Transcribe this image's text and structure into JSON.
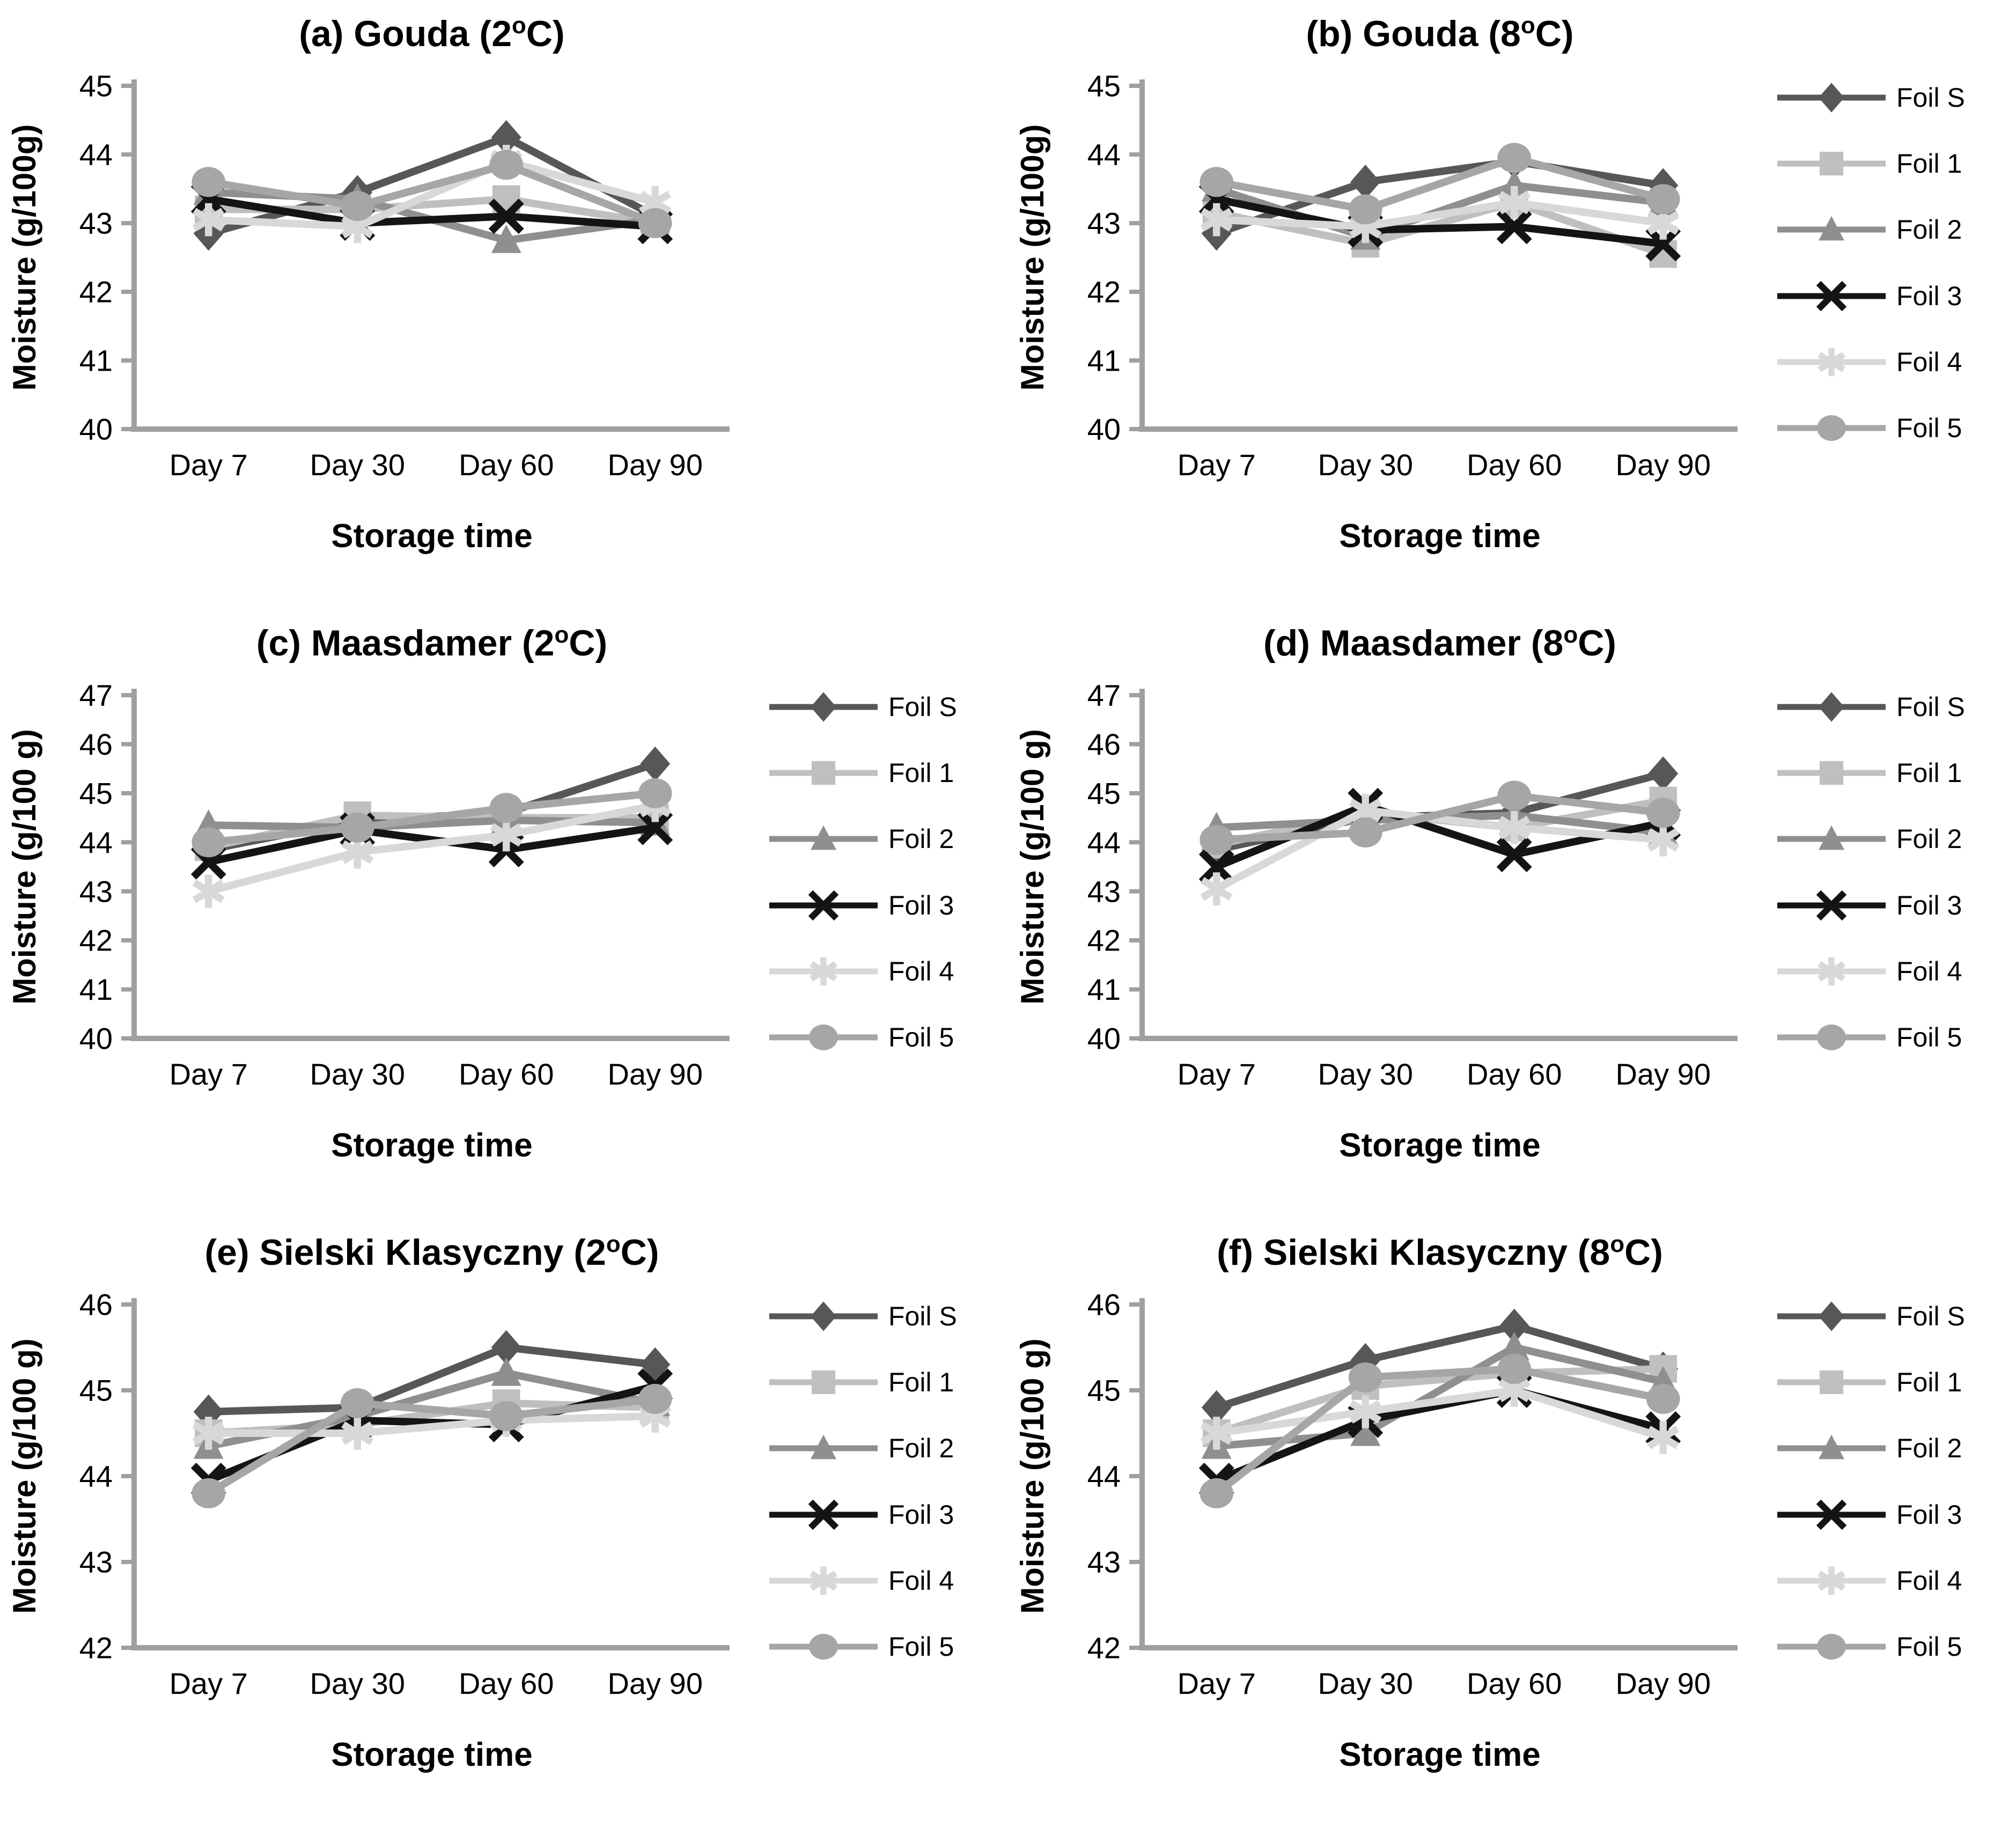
{
  "figure_name": "Cheese moisture during storage",
  "chart_data": [
    {
      "type": "line",
      "panel": "a",
      "title_prefix": "(a) Gouda (2",
      "title_sup": "o",
      "title_suffix": "C)",
      "ylabel": "Moisture (g/100g)",
      "xlabel": "Storage time",
      "ylim": [
        40,
        45
      ],
      "yticks": [
        45,
        44,
        43,
        42,
        41,
        40
      ],
      "categories": [
        "Day 7",
        "Day 30",
        "Day 60",
        "Day 90"
      ],
      "grid": false,
      "legend": false,
      "legend_position": "none",
      "series": [
        {
          "name": "Foil S",
          "marker": "diamond",
          "color": "#575757",
          "values": [
            42.85,
            43.45,
            44.25,
            43.1
          ]
        },
        {
          "name": "Foil 1",
          "marker": "square",
          "color": "#bfbfbf",
          "values": [
            43.2,
            43.2,
            43.35,
            43.0
          ]
        },
        {
          "name": "Foil 2",
          "marker": "triangle",
          "color": "#8f8f8f",
          "values": [
            43.45,
            43.35,
            42.75,
            43.05
          ]
        },
        {
          "name": "Foil 3",
          "marker": "x",
          "color": "#141414",
          "values": [
            43.35,
            43.0,
            43.1,
            42.95
          ]
        },
        {
          "name": "Foil 4",
          "marker": "asterisk",
          "color": "#d8d8d8",
          "values": [
            43.05,
            42.95,
            43.9,
            43.3
          ]
        },
        {
          "name": "Foil 5",
          "marker": "circle",
          "color": "#a6a6a6",
          "values": [
            43.6,
            43.25,
            43.85,
            43.0
          ]
        }
      ]
    },
    {
      "type": "line",
      "panel": "b",
      "title_prefix": "(b) Gouda (8",
      "title_sup": "o",
      "title_suffix": "C)",
      "ylabel": "Moisture (g/100g)",
      "xlabel": "Storage time",
      "ylim": [
        40,
        45
      ],
      "yticks": [
        45,
        44,
        43,
        42,
        41,
        40
      ],
      "categories": [
        "Day 7",
        "Day 30",
        "Day 60",
        "Day 90"
      ],
      "grid": false,
      "legend": true,
      "legend_position": "right",
      "series": [
        {
          "name": "Foil S",
          "marker": "diamond",
          "color": "#575757",
          "values": [
            42.85,
            43.6,
            43.9,
            43.55
          ]
        },
        {
          "name": "Foil 1",
          "marker": "square",
          "color": "#bfbfbf",
          "values": [
            43.15,
            42.7,
            43.3,
            42.55
          ]
        },
        {
          "name": "Foil 2",
          "marker": "triangle",
          "color": "#8f8f8f",
          "values": [
            43.5,
            42.8,
            43.55,
            43.3
          ]
        },
        {
          "name": "Foil 3",
          "marker": "x",
          "color": "#141414",
          "values": [
            43.35,
            42.9,
            42.95,
            42.7
          ]
        },
        {
          "name": "Foil 4",
          "marker": "asterisk",
          "color": "#d8d8d8",
          "values": [
            43.05,
            42.95,
            43.3,
            43.0
          ]
        },
        {
          "name": "Foil 5",
          "marker": "circle",
          "color": "#a6a6a6",
          "values": [
            43.6,
            43.2,
            43.95,
            43.35
          ]
        }
      ]
    },
    {
      "type": "line",
      "panel": "c",
      "title_prefix": "(c) Maasdamer (2",
      "title_sup": "o",
      "title_suffix": "C)",
      "ylabel": "Moisture (g/100 g)",
      "xlabel": "Storage time",
      "ylim": [
        40,
        47
      ],
      "yticks": [
        47,
        46,
        45,
        44,
        43,
        42,
        41,
        40
      ],
      "categories": [
        "Day 7",
        "Day 30",
        "Day 60",
        "Day 90"
      ],
      "grid": false,
      "legend": true,
      "legend_position": "right",
      "series": [
        {
          "name": "Foil S",
          "marker": "diamond",
          "color": "#575757",
          "values": [
            43.85,
            44.45,
            44.6,
            45.6
          ]
        },
        {
          "name": "Foil 1",
          "marker": "square",
          "color": "#bfbfbf",
          "values": [
            43.9,
            44.55,
            44.5,
            44.5
          ]
        },
        {
          "name": "Foil 2",
          "marker": "triangle",
          "color": "#8f8f8f",
          "values": [
            44.35,
            44.3,
            44.45,
            44.4
          ]
        },
        {
          "name": "Foil 3",
          "marker": "x",
          "color": "#141414",
          "values": [
            43.6,
            44.25,
            43.85,
            44.3
          ]
        },
        {
          "name": "Foil 4",
          "marker": "asterisk",
          "color": "#d8d8d8",
          "values": [
            43.0,
            43.8,
            44.15,
            44.75
          ]
        },
        {
          "name": "Foil 5",
          "marker": "circle",
          "color": "#a6a6a6",
          "values": [
            44.0,
            44.3,
            44.7,
            45.0
          ]
        }
      ]
    },
    {
      "type": "line",
      "panel": "d",
      "title_prefix": "(d) Maasdamer (8",
      "title_sup": "o",
      "title_suffix": "C)",
      "ylabel": "Moisture (g/100 g)",
      "xlabel": "Storage time",
      "ylim": [
        40,
        47
      ],
      "yticks": [
        47,
        46,
        45,
        44,
        43,
        42,
        41,
        40
      ],
      "categories": [
        "Day 7",
        "Day 30",
        "Day 60",
        "Day 90"
      ],
      "grid": false,
      "legend": true,
      "legend_position": "right",
      "series": [
        {
          "name": "Foil S",
          "marker": "diamond",
          "color": "#575757",
          "values": [
            43.85,
            44.5,
            44.6,
            45.4
          ]
        },
        {
          "name": "Foil 1",
          "marker": "square",
          "color": "#bfbfbf",
          "values": [
            43.95,
            44.6,
            44.3,
            44.85
          ]
        },
        {
          "name": "Foil 2",
          "marker": "triangle",
          "color": "#8f8f8f",
          "values": [
            44.3,
            44.45,
            44.55,
            44.2
          ]
        },
        {
          "name": "Foil 3",
          "marker": "x",
          "color": "#141414",
          "values": [
            43.5,
            44.75,
            43.75,
            44.4
          ]
        },
        {
          "name": "Foil 4",
          "marker": "asterisk",
          "color": "#d8d8d8",
          "values": [
            43.05,
            44.65,
            44.3,
            44.05
          ]
        },
        {
          "name": "Foil 5",
          "marker": "circle",
          "color": "#a6a6a6",
          "values": [
            44.05,
            44.2,
            44.95,
            44.6
          ]
        }
      ]
    },
    {
      "type": "line",
      "panel": "e",
      "title_prefix": "(e) Sielski Klasyczny (2",
      "title_sup": "o",
      "title_suffix": "C)",
      "ylabel": "Moisture (g/100 g)",
      "xlabel": "Storage time",
      "ylim": [
        42,
        46
      ],
      "yticks": [
        46,
        45,
        44,
        43,
        42
      ],
      "categories": [
        "Day 7",
        "Day 30",
        "Day 60",
        "Day 90"
      ],
      "grid": false,
      "legend": true,
      "legend_position": "right",
      "series": [
        {
          "name": "Foil S",
          "marker": "diamond",
          "color": "#575757",
          "values": [
            44.75,
            44.8,
            45.5,
            45.3
          ]
        },
        {
          "name": "Foil 1",
          "marker": "square",
          "color": "#bfbfbf",
          "values": [
            44.5,
            44.6,
            44.85,
            44.8
          ]
        },
        {
          "name": "Foil 2",
          "marker": "triangle",
          "color": "#8f8f8f",
          "values": [
            44.35,
            44.7,
            45.2,
            44.85
          ]
        },
        {
          "name": "Foil 3",
          "marker": "x",
          "color": "#141414",
          "values": [
            43.95,
            44.65,
            44.6,
            45.05
          ]
        },
        {
          "name": "Foil 4",
          "marker": "asterisk",
          "color": "#d8d8d8",
          "values": [
            44.5,
            44.5,
            44.65,
            44.7
          ]
        },
        {
          "name": "Foil 5",
          "marker": "circle",
          "color": "#a6a6a6",
          "values": [
            43.8,
            44.85,
            44.7,
            44.9
          ]
        }
      ]
    },
    {
      "type": "line",
      "panel": "f",
      "title_prefix": "(f) Sielski Klasyczny (8",
      "title_sup": "o",
      "title_suffix": "C)",
      "ylabel": "Moisture (g/100 g)",
      "xlabel": "Storage time",
      "ylim": [
        42,
        46
      ],
      "yticks": [
        46,
        45,
        44,
        43,
        42
      ],
      "categories": [
        "Day 7",
        "Day 30",
        "Day 60",
        "Day 90"
      ],
      "grid": false,
      "legend": true,
      "legend_position": "right",
      "series": [
        {
          "name": "Foil S",
          "marker": "diamond",
          "color": "#575757",
          "values": [
            44.8,
            45.35,
            45.75,
            45.25
          ]
        },
        {
          "name": "Foil 1",
          "marker": "square",
          "color": "#bfbfbf",
          "values": [
            44.5,
            45.05,
            45.2,
            45.25
          ]
        },
        {
          "name": "Foil 2",
          "marker": "triangle",
          "color": "#8f8f8f",
          "values": [
            44.35,
            44.5,
            45.5,
            45.1
          ]
        },
        {
          "name": "Foil 3",
          "marker": "x",
          "color": "#141414",
          "values": [
            43.95,
            44.65,
            45.0,
            44.55
          ]
        },
        {
          "name": "Foil 4",
          "marker": "asterisk",
          "color": "#d8d8d8",
          "values": [
            44.5,
            44.75,
            45.0,
            44.45
          ]
        },
        {
          "name": "Foil 5",
          "marker": "circle",
          "color": "#a6a6a6",
          "values": [
            43.8,
            45.15,
            45.25,
            44.9
          ]
        }
      ]
    }
  ]
}
